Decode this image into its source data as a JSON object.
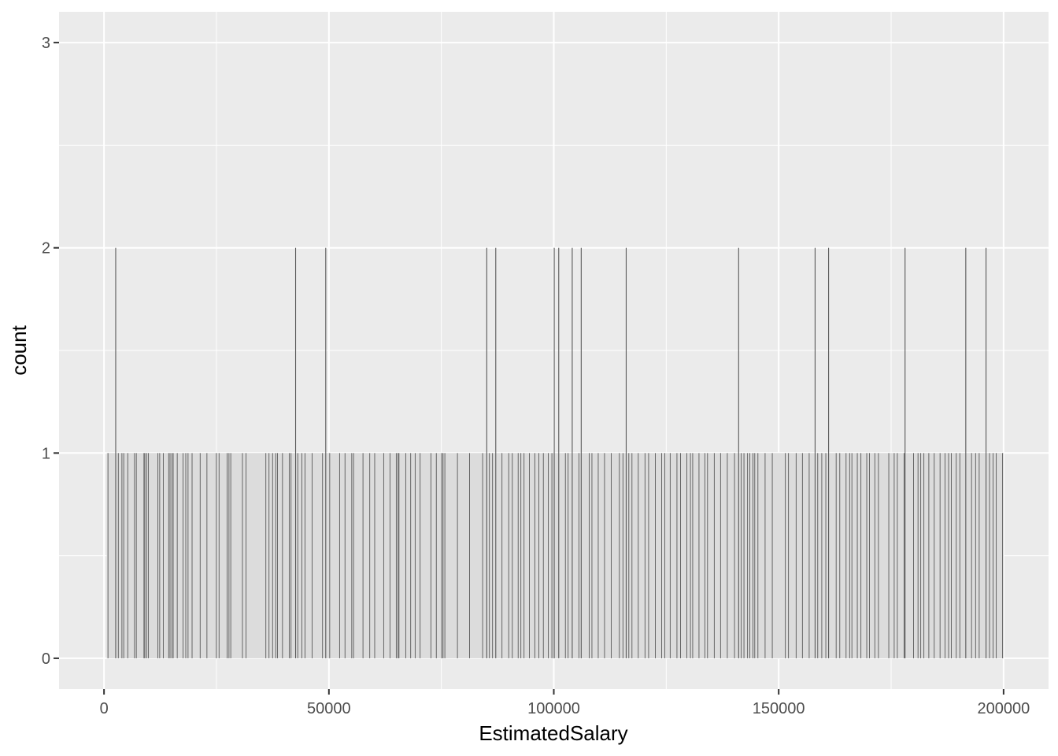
{
  "chart_data": {
    "type": "bar",
    "subtype": "histogram",
    "title": "",
    "xlabel": "EstimatedSalary",
    "ylabel": "count",
    "xlim": [
      -10000,
      210000
    ],
    "ylim": [
      -0.15,
      3.15
    ],
    "x_ticks": [
      0,
      50000,
      100000,
      150000,
      200000
    ],
    "x_tick_labels": [
      "0",
      "50000",
      "100000",
      "150000",
      "200000"
    ],
    "y_ticks": [
      0,
      1,
      2,
      3
    ],
    "y_tick_labels": [
      "0",
      "1",
      "2",
      "3"
    ],
    "x_range": [
      579,
      199992
    ],
    "count_two_salaries": [
      2500,
      42500,
      49200,
      85000,
      87000,
      100000,
      101000,
      104000,
      106000,
      116000,
      141000,
      158000,
      161000,
      178000,
      191500,
      196000
    ],
    "count_one_salaries": [
      800,
      3100,
      3900,
      4300,
      5200,
      6700,
      7100,
      8800,
      9000,
      9400,
      9800,
      11900,
      12300,
      13100,
      14300,
      14600,
      15000,
      15300,
      16200,
      17500,
      18100,
      18600,
      19500,
      21300,
      22800,
      24900,
      25500,
      27300,
      27700,
      28100,
      30700,
      31500,
      35900,
      36600,
      37400,
      38100,
      38500,
      39600,
      41100,
      41500,
      43000,
      43900,
      44600,
      46200,
      48500,
      50100,
      52300,
      53500,
      55000,
      55400,
      57500,
      59000,
      60100,
      62100,
      63500,
      64900,
      65300,
      65500,
      67000,
      68100,
      69100,
      70200,
      72600,
      73800,
      75000,
      75300,
      75700,
      78500,
      81200,
      84100,
      85600,
      86300,
      88400,
      89900,
      90700,
      92000,
      92600,
      93300,
      94500,
      95700,
      96600,
      97600,
      98700,
      99500,
      102500,
      103100,
      105500,
      107800,
      108400,
      109800,
      111200,
      112700,
      114500,
      115300,
      116600,
      117300,
      118700,
      120200,
      121000,
      122500,
      123900,
      124600,
      125800,
      127300,
      128100,
      129500,
      130300,
      130800,
      132200,
      133500,
      134100,
      135600,
      137000,
      138500,
      140100,
      141600,
      142200,
      143000,
      143500,
      144200,
      144600,
      145300,
      146900,
      148500,
      151400,
      152100,
      153800,
      155200,
      156700,
      158600,
      159500,
      160400,
      162700,
      163500,
      164900,
      165700,
      166200,
      167400,
      168200,
      169500,
      170100,
      171300,
      172100,
      174400,
      175600,
      176300,
      177800,
      179900,
      180900,
      181500,
      182200,
      183300,
      184500,
      185800,
      186900,
      187700,
      188300,
      189400,
      190200,
      192800,
      193700,
      194500,
      196800,
      197600,
      198300,
      199700
    ],
    "dense_count_one_band": [
      579,
      199992
    ],
    "bar_color": "#595959",
    "panel_background": "#ebebeb",
    "grid": true
  }
}
